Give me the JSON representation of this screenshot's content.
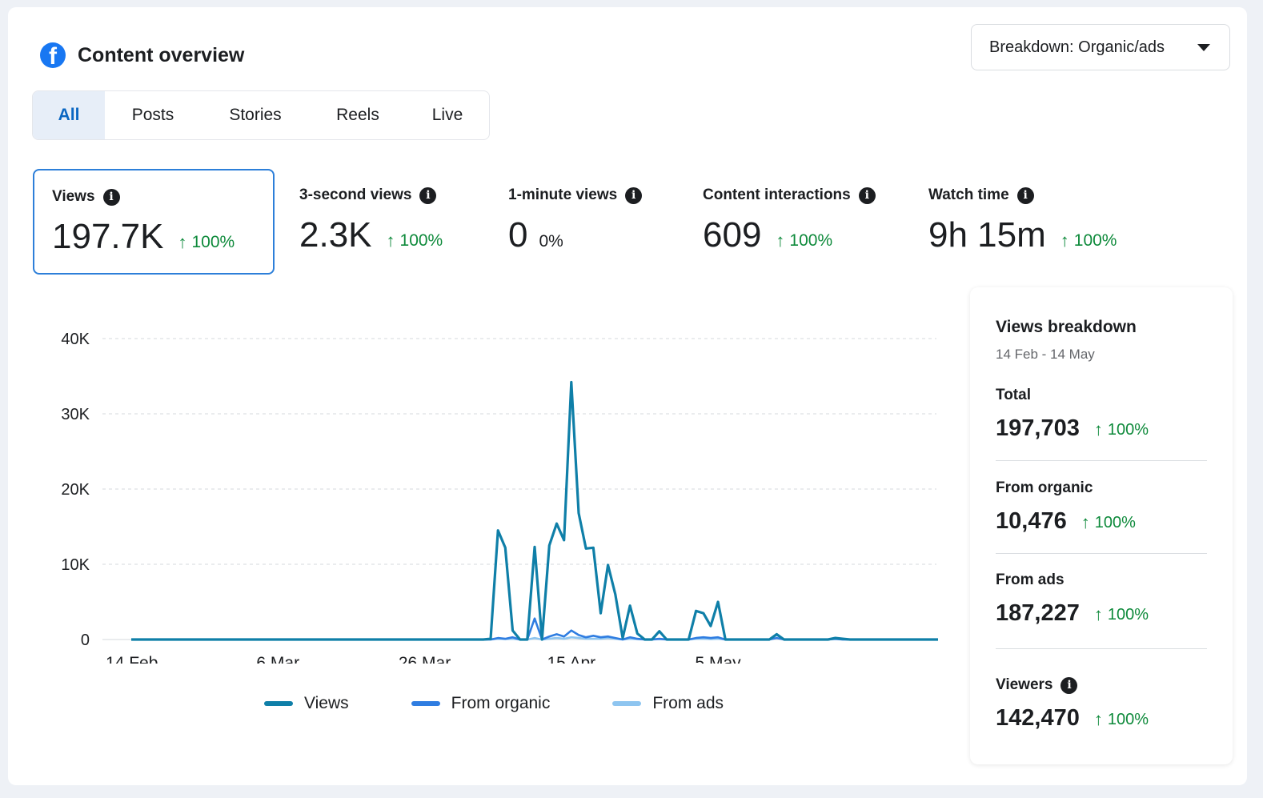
{
  "header": {
    "title": "Content overview",
    "logo_icon": "facebook-logo-icon",
    "logo_letter": "f"
  },
  "breakdown": {
    "label": "Breakdown: Organic/ads",
    "icon": "chevron-down-icon"
  },
  "tabs": [
    {
      "label": "All",
      "active": true
    },
    {
      "label": "Posts",
      "active": false
    },
    {
      "label": "Stories",
      "active": false
    },
    {
      "label": "Reels",
      "active": false
    },
    {
      "label": "Live",
      "active": false
    }
  ],
  "metrics": [
    {
      "label": "Views",
      "value": "197.7K",
      "change": "100%",
      "trend": "up",
      "selected": true
    },
    {
      "label": "3-second views",
      "value": "2.3K",
      "change": "100%",
      "trend": "up",
      "selected": false
    },
    {
      "label": "1-minute views",
      "value": "0",
      "change": "0%",
      "trend": "none",
      "selected": false
    },
    {
      "label": "Content interactions",
      "value": "609",
      "change": "100%",
      "trend": "up",
      "selected": false
    },
    {
      "label": "Watch time",
      "value": "9h 15m",
      "change": "100%",
      "trend": "up",
      "selected": false
    }
  ],
  "info_glyph": "i",
  "arrow_glyph": "↑",
  "colors": {
    "accent": "#2d7fd9",
    "positive": "#0e8a3b",
    "views": "#0f7fa8",
    "organic": "#2f7de1",
    "ads": "#8ec5f0"
  },
  "chart_data": {
    "type": "line",
    "x_start": "14 Feb",
    "x_end": "14 May",
    "xticks": [
      "14 Feb",
      "6 Mar",
      "26 Mar",
      "15 Apr",
      "5 May"
    ],
    "yticks": [
      "0",
      "10K",
      "20K",
      "30K",
      "40K"
    ],
    "ylim": [
      0,
      40000
    ],
    "grid": true,
    "legend_position": "bottom",
    "series": [
      {
        "name": "Views",
        "color": "#0f7fa8",
        "values": [
          0,
          0,
          0,
          0,
          0,
          0,
          0,
          0,
          0,
          0,
          0,
          0,
          0,
          0,
          0,
          0,
          0,
          0,
          0,
          0,
          0,
          0,
          0,
          0,
          0,
          0,
          0,
          0,
          0,
          0,
          0,
          0,
          0,
          0,
          0,
          0,
          0,
          0,
          0,
          0,
          0,
          0,
          0,
          0,
          0,
          0,
          0,
          0,
          0,
          100,
          14500,
          12200,
          1200,
          0,
          0,
          12300,
          0,
          12500,
          15400,
          13200,
          34200,
          16800,
          12100,
          12200,
          3500,
          9900,
          6000,
          200,
          4500,
          800,
          0,
          0,
          1100,
          0,
          0,
          0,
          0,
          3800,
          3500,
          1800,
          5000,
          0,
          0,
          0,
          0,
          0,
          0,
          0,
          700,
          0,
          0,
          0,
          0,
          0,
          0,
          0,
          200,
          100,
          0,
          0,
          0,
          0,
          0,
          0,
          0,
          0,
          0,
          0,
          0,
          0,
          0
        ]
      },
      {
        "name": "From organic",
        "color": "#2f7de1",
        "values": [
          0,
          0,
          0,
          0,
          0,
          0,
          0,
          0,
          0,
          0,
          0,
          0,
          0,
          0,
          0,
          0,
          0,
          0,
          0,
          0,
          0,
          0,
          0,
          0,
          0,
          0,
          0,
          0,
          0,
          0,
          0,
          0,
          0,
          0,
          0,
          0,
          0,
          0,
          0,
          0,
          0,
          0,
          0,
          0,
          0,
          0,
          0,
          0,
          0,
          0,
          200,
          100,
          300,
          0,
          0,
          2800,
          0,
          400,
          700,
          400,
          1200,
          600,
          300,
          500,
          300,
          400,
          200,
          0,
          300,
          100,
          0,
          0,
          100,
          0,
          0,
          0,
          0,
          200,
          300,
          200,
          300,
          0,
          0,
          0,
          0,
          0,
          0,
          0,
          200,
          0,
          0,
          0,
          0,
          0,
          0,
          0,
          100,
          0,
          0,
          0,
          0,
          0,
          0,
          0,
          0,
          0,
          0,
          0,
          0,
          0,
          0
        ]
      },
      {
        "name": "From ads",
        "color": "#8ec5f0",
        "values": [
          0,
          0,
          0,
          0,
          0,
          0,
          0,
          0,
          0,
          0,
          0,
          0,
          0,
          0,
          0,
          0,
          0,
          0,
          0,
          0,
          0,
          0,
          0,
          0,
          0,
          0,
          0,
          0,
          0,
          0,
          0,
          0,
          0,
          0,
          0,
          0,
          0,
          0,
          0,
          0,
          0,
          0,
          0,
          0,
          0,
          0,
          0,
          0,
          0,
          0,
          100,
          50,
          100,
          0,
          0,
          200,
          0,
          100,
          200,
          100,
          300,
          200,
          100,
          100,
          100,
          200,
          100,
          0,
          100,
          50,
          0,
          0,
          50,
          0,
          0,
          0,
          0,
          100,
          100,
          50,
          100,
          0,
          0,
          0,
          0,
          0,
          0,
          0,
          600,
          0,
          0,
          0,
          0,
          0,
          0,
          0,
          50,
          0,
          0,
          0,
          0,
          0,
          0,
          0,
          0,
          0,
          0,
          0,
          0,
          0,
          0
        ]
      }
    ]
  },
  "breakdown_panel": {
    "title": "Views breakdown",
    "date_range": "14 Feb - 14 May",
    "stats": [
      {
        "label": "Total",
        "value": "197,703",
        "change": "100%",
        "info": false
      },
      {
        "label": "From organic",
        "value": "10,476",
        "change": "100%",
        "info": false
      },
      {
        "label": "From ads",
        "value": "187,227",
        "change": "100%",
        "info": false
      },
      {
        "label": "Viewers",
        "value": "142,470",
        "change": "100%",
        "info": true
      }
    ]
  }
}
